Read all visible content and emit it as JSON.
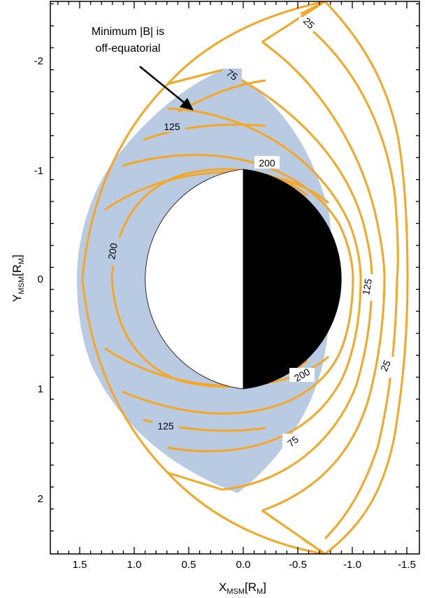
{
  "colors": {
    "contour": "#f5a623",
    "fill": "#b9cbe3",
    "planet_day": "#ffffff",
    "planet_night": "#000000",
    "frame": "#000000"
  },
  "axes": {
    "xlabel_main": "X",
    "xlabel_sub": "MSM",
    "xlabel_unit_open": "[R",
    "xlabel_unit_sub": "M",
    "xlabel_unit_close": "]",
    "ylabel_main": "Y",
    "ylabel_sub": "MSM",
    "ylabel_unit_open": "[R",
    "ylabel_unit_sub": "M",
    "ylabel_unit_close": "]",
    "x_ticks": [
      "1.5",
      "1.0",
      "0.5",
      "0.0",
      "-0.5",
      "-1.0",
      "-1.5"
    ],
    "y_ticks": [
      "-2",
      "-1",
      "0",
      "1",
      "2"
    ]
  },
  "annotation": {
    "line1": "Minimum |B| is",
    "line2": "off-equatorial"
  },
  "contour_labels": {
    "c25_top": "25",
    "c25_bottom": "25",
    "c75_top": "75",
    "c75_bottom": "75",
    "c125_top": "125",
    "c125_right": "125",
    "c125_bottom": "125",
    "c200_top": "200",
    "c200_left": "200",
    "c200_bottom": "200"
  }
}
